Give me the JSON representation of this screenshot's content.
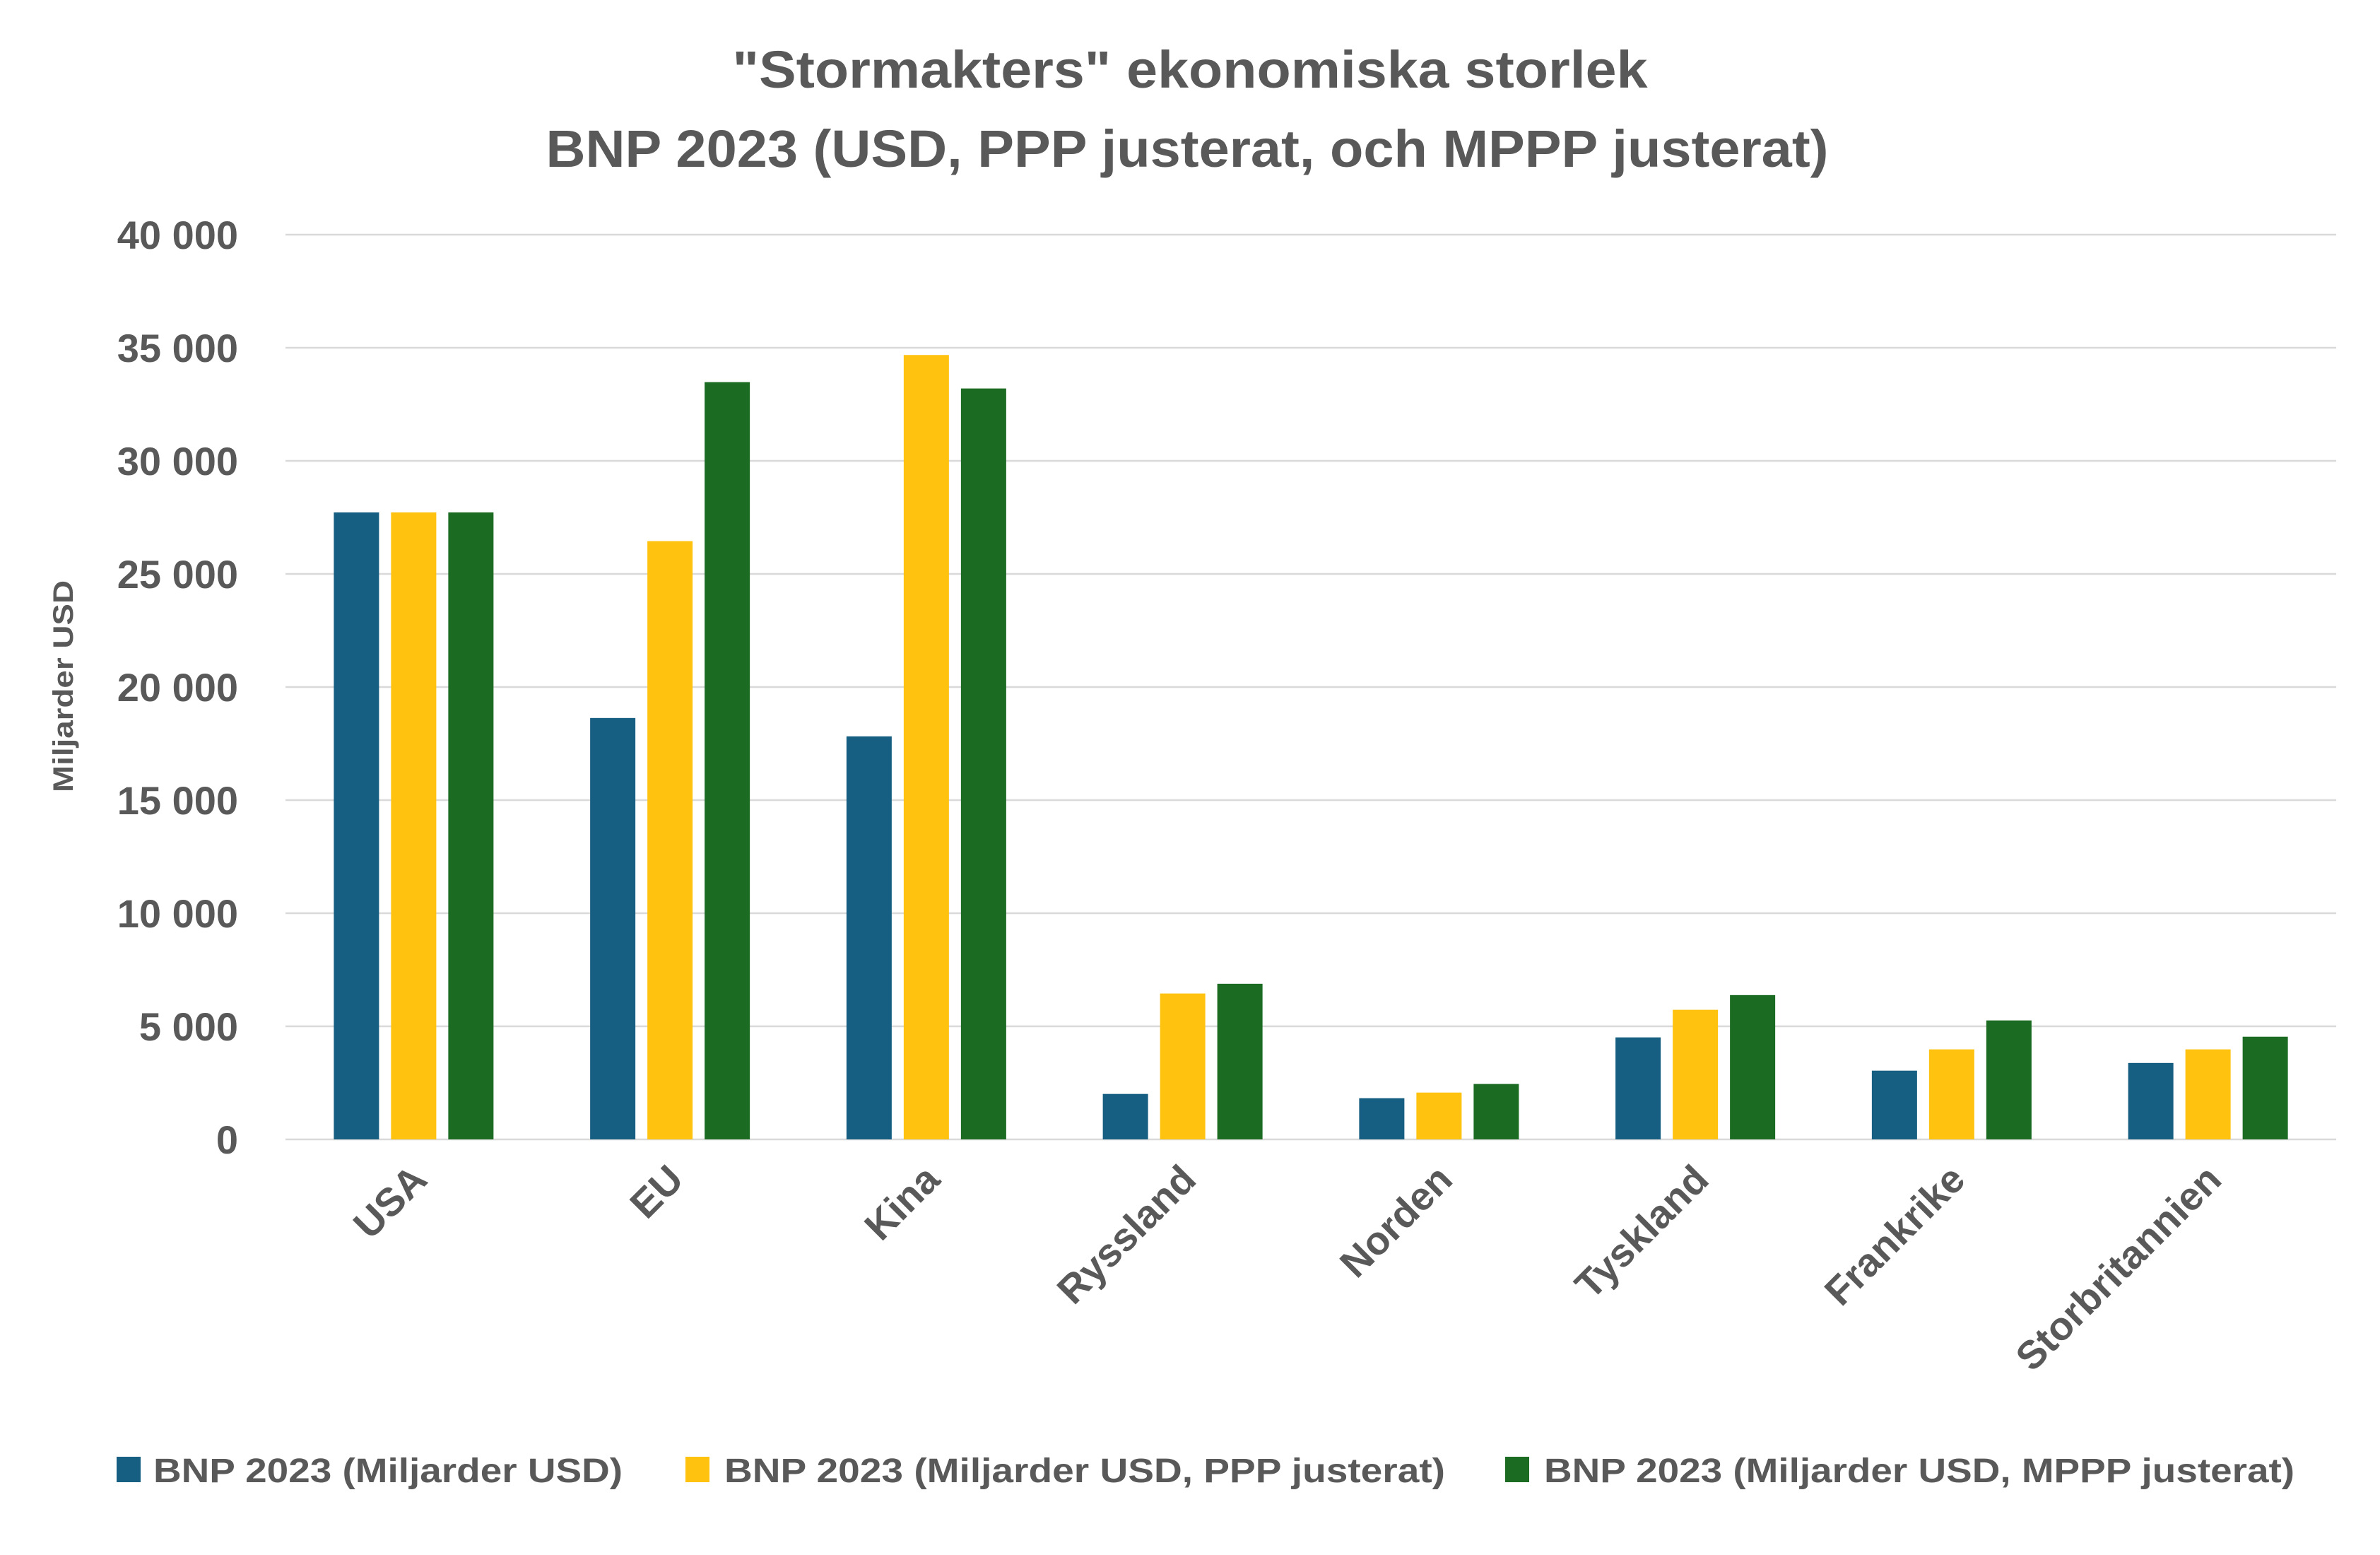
{
  "chart_data": {
    "type": "bar",
    "title": [
      "\"Stormakters\" ekonomiska storlek",
      "BNP 2023 (USD, PPP justerat, och MPPP justerat)"
    ],
    "xlabel": "",
    "ylabel": "Miljarder USD",
    "ylim": [
      0,
      40000
    ],
    "yticks": [
      0,
      5000,
      10000,
      15000,
      20000,
      25000,
      30000,
      35000,
      40000
    ],
    "ytick_labels": [
      "0",
      "5 000",
      "10 000",
      "15 000",
      "20 000",
      "25 000",
      "30 000",
      "35 000",
      "40 000"
    ],
    "grid": true,
    "legend_position": "bottom",
    "categories": [
      "USA",
      "EU",
      "Kina",
      "Ryssland",
      "Norden",
      "Tyskland",
      "Frankrike",
      "Storbritannien"
    ],
    "series": [
      {
        "name": "BNP 2023 (Miljarder USD)",
        "color": "#175F82",
        "values": [
          27720,
          18630,
          17820,
          2010,
          1820,
          4510,
          3040,
          3380
        ]
      },
      {
        "name": "BNP 2023 (Miljarder USD, PPP justerat)",
        "color": "#FFC20E",
        "values": [
          27720,
          26450,
          34680,
          6450,
          2070,
          5730,
          3980,
          3980
        ]
      },
      {
        "name": "BNP 2023 (Miljarder USD, MPPP justerat)",
        "color": "#1B6B23",
        "values": [
          27720,
          33480,
          33200,
          6880,
          2450,
          6380,
          5260,
          4540
        ]
      }
    ]
  }
}
